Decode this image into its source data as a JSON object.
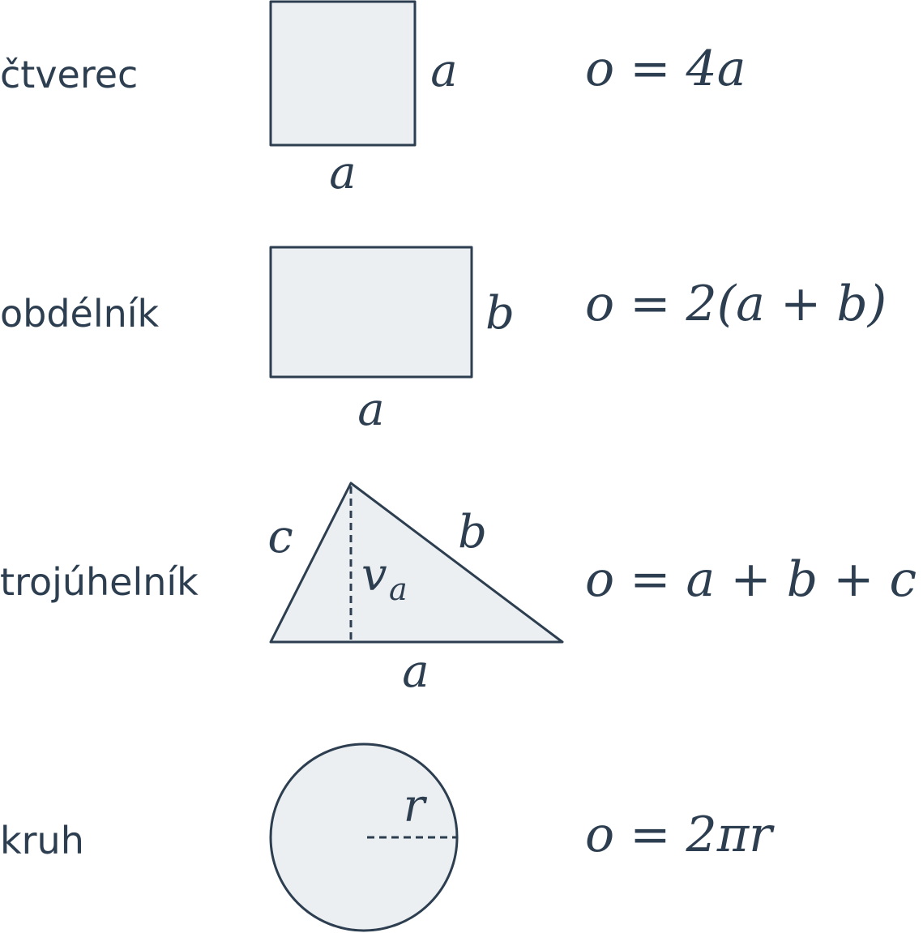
{
  "rows": [
    {
      "name": "čtverec",
      "labels": {
        "side_right": "a",
        "side_bottom": "a"
      },
      "formula": "o = 4a"
    },
    {
      "name": "obdélník",
      "labels": {
        "side_right": "b",
        "side_bottom": "a"
      },
      "formula": "o = 2(a + b)"
    },
    {
      "name": "trojúhelník",
      "labels": {
        "side_left": "c",
        "side_right": "b",
        "side_bottom": "a",
        "height": "v",
        "height_sub": "a"
      },
      "formula": "o = a + b + c"
    },
    {
      "name": "kruh",
      "labels": {
        "radius": "r"
      },
      "formula": "o = 2πr"
    }
  ],
  "colors": {
    "fill": "#eceff1",
    "stroke": "#2c3e50",
    "text": "#2c3e50"
  }
}
